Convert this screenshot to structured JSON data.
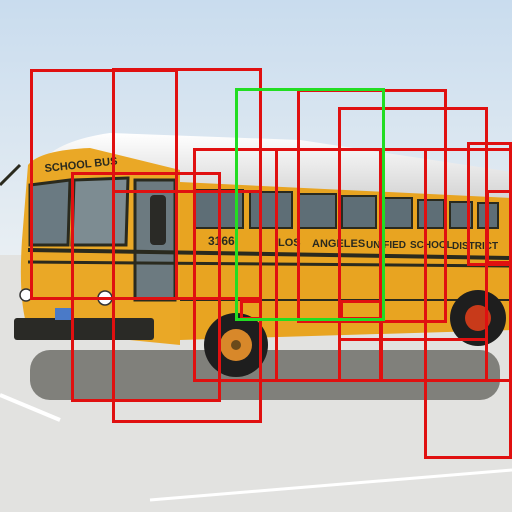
{
  "scene": {
    "subject": "school-bus",
    "colors": {
      "sky_top": "#cfe0ef",
      "sky_bottom": "#eef2f4",
      "pavement": "#e2e2e0",
      "bus_body": "#e8a421",
      "bus_roof": "#eeeeec",
      "stripe": "#2a2a1e",
      "wheel": "#1e1e1e",
      "hub": "#d8882a"
    },
    "bus_lettering": {
      "front_sign": "SCHOOL BUS",
      "fleet_number": "3166",
      "side_words": [
        "LOS",
        "ANGELES",
        "UNIFIED",
        "SCHOOL",
        "DISTRICT"
      ]
    }
  },
  "annotations": {
    "box_color": "#e01010",
    "selected_color": "#22dd22",
    "box_count": 15,
    "selected_count": 1
  }
}
